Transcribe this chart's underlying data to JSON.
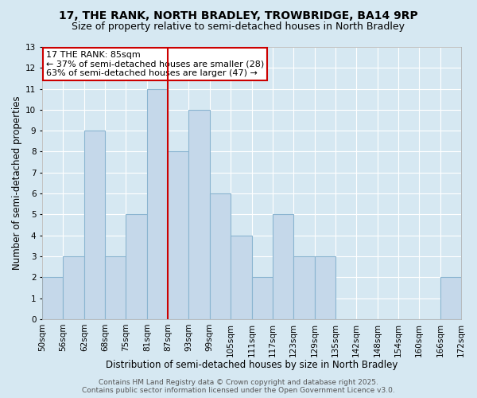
{
  "title": "17, THE RANK, NORTH BRADLEY, TROWBRIDGE, BA14 9RP",
  "subtitle": "Size of property relative to semi-detached houses in North Bradley",
  "xlabel": "Distribution of semi-detached houses by size in North Bradley",
  "ylabel": "Number of semi-detached properties",
  "bin_labels": [
    "50sqm",
    "56sqm",
    "62sqm",
    "68sqm",
    "75sqm",
    "81sqm",
    "87sqm",
    "93sqm",
    "99sqm",
    "105sqm",
    "111sqm",
    "117sqm",
    "123sqm",
    "129sqm",
    "135sqm",
    "142sqm",
    "148sqm",
    "154sqm",
    "160sqm",
    "166sqm",
    "172sqm"
  ],
  "bar_heights": [
    2,
    3,
    9,
    3,
    5,
    11,
    8,
    10,
    6,
    4,
    2,
    5,
    3,
    3,
    0,
    0,
    0,
    0,
    0,
    2
  ],
  "bar_color": "#c5d8ea",
  "bar_edgecolor": "#8ab4d0",
  "property_size_idx": 6,
  "vline_color": "#cc0000",
  "ylim": [
    0,
    13
  ],
  "yticks": [
    0,
    1,
    2,
    3,
    4,
    5,
    6,
    7,
    8,
    9,
    10,
    11,
    12,
    13
  ],
  "annotation_title": "17 THE RANK: 85sqm",
  "annotation_line1": "← 37% of semi-detached houses are smaller (28)",
  "annotation_line2": "63% of semi-detached houses are larger (47) →",
  "annotation_box_color": "#ffffff",
  "annotation_border_color": "#cc0000",
  "background_color": "#d6e8f2",
  "grid_color": "#ffffff",
  "footer_line1": "Contains HM Land Registry data © Crown copyright and database right 2025.",
  "footer_line2": "Contains public sector information licensed under the Open Government Licence v3.0.",
  "title_fontsize": 10,
  "subtitle_fontsize": 9,
  "xlabel_fontsize": 8.5,
  "ylabel_fontsize": 8.5,
  "tick_fontsize": 7.5,
  "annotation_fontsize": 8,
  "footer_fontsize": 6.5
}
